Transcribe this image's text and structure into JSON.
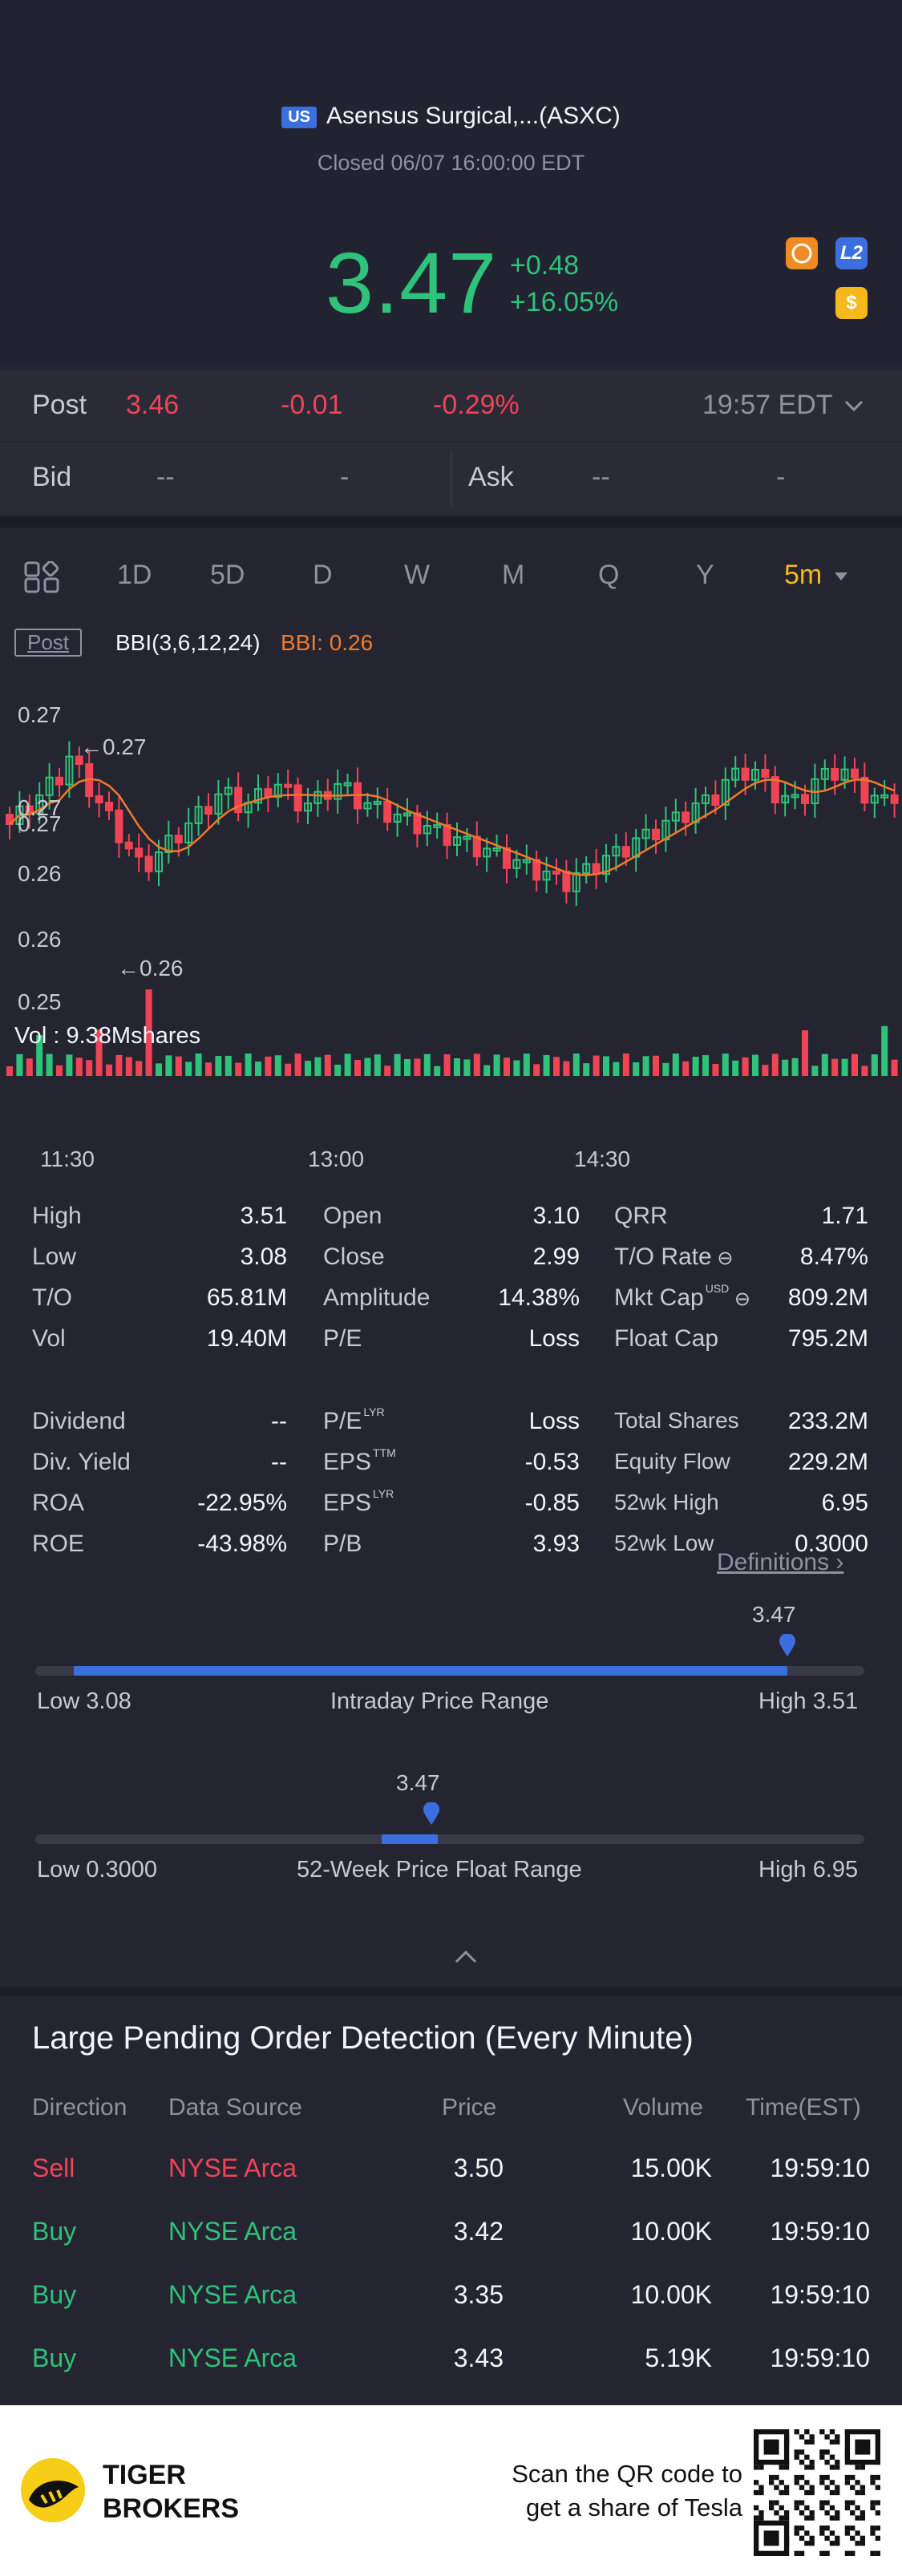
{
  "header": {
    "market_flag": "US",
    "title": "Asensus Surgical,...(ASXC)",
    "status": "Closed 06/07 16:00:00 EDT",
    "price": "3.47",
    "change": "+0.48",
    "change_pct": "+16.05%",
    "badges": {
      "l2": "L2",
      "dollar": "$"
    }
  },
  "post": {
    "label": "Post",
    "price": "3.46",
    "change": "-0.01",
    "change_pct": "-0.29%",
    "time": "19:57 EDT"
  },
  "bid_ask": {
    "bid_label": "Bid",
    "bid_price": "--",
    "bid_size": "-",
    "ask_label": "Ask",
    "ask_price": "--",
    "ask_size": "-"
  },
  "tabs": [
    "1D",
    "5D",
    "D",
    "W",
    "M",
    "Q",
    "Y",
    "5m"
  ],
  "active_tab": "5m",
  "indicator": {
    "post_tag": "Post",
    "name": "BBI(3,6,12,24)",
    "value": "BBI: 0.26"
  },
  "chart_data": {
    "type": "candlestick",
    "y_ticks": [
      "0.27",
      "0.27",
      "0.26",
      "0.26",
      "0.25"
    ],
    "x_ticks": [
      "11:30",
      "13:00",
      "14:30"
    ],
    "annotations": {
      "high": "0.27",
      "low": "0.26"
    },
    "volume_label": "Vol : 9.38Mshares"
  },
  "stats": {
    "col1": [
      {
        "label": "High",
        "value": "3.51"
      },
      {
        "label": "Low",
        "value": "3.08"
      },
      {
        "label": "T/O",
        "value": "65.81M"
      },
      {
        "label": "Vol",
        "value": "19.40M"
      }
    ],
    "col2": [
      {
        "label": "Open",
        "value": "3.10"
      },
      {
        "label": "Close",
        "value": "2.99"
      },
      {
        "label": "Amplitude",
        "value": "14.38%"
      },
      {
        "label": "P/E",
        "value": "Loss"
      }
    ],
    "col3": [
      {
        "label": "QRR",
        "value": "1.71"
      },
      {
        "label": "T/O Rate",
        "value": "8.47%"
      },
      {
        "label": "Mkt Cap",
        "value": "809.2M",
        "sup": "USD"
      },
      {
        "label": "Float Cap",
        "value": "795.2M"
      }
    ],
    "col1b": [
      {
        "label": "Dividend",
        "value": "--"
      },
      {
        "label": "Div. Yield",
        "value": "--"
      },
      {
        "label": "ROA",
        "value": "-22.95%"
      },
      {
        "label": "ROE",
        "value": "-43.98%"
      }
    ],
    "col2b": [
      {
        "label": "P/E",
        "sup": "LYR",
        "value": "Loss"
      },
      {
        "label": "EPS",
        "sup": "TTM",
        "value": "-0.53"
      },
      {
        "label": "EPS",
        "sup": "LYR",
        "value": "-0.85"
      },
      {
        "label": "P/B",
        "value": "3.93"
      }
    ],
    "col3b": [
      {
        "label": "Total Shares",
        "value": "233.2M"
      },
      {
        "label": "Equity Flow",
        "value": "229.2M"
      },
      {
        "label": "52wk High",
        "value": "6.95"
      },
      {
        "label": "52wk Low",
        "value": "0.3000"
      }
    ],
    "definitions": "Definitions"
  },
  "intraday_range": {
    "marker": "3.47",
    "low": "Low 3.08",
    "title": "Intraday Price Range",
    "high": "High 3.51",
    "position": 0.907
  },
  "week52_range": {
    "marker": "3.47",
    "low": "Low 0.3000",
    "title": "52-Week Price Float Range",
    "high": "High 6.95",
    "position": 0.477
  },
  "orders": {
    "title": "Large Pending Order Detection (Every Minute)",
    "headers": [
      "Direction",
      "Data Source",
      "Price",
      "Volume",
      "Time(EST)"
    ],
    "rows": [
      {
        "dir": "Sell",
        "src": "NYSE Arca",
        "price": "3.50",
        "vol": "15.00K",
        "time": "19:59:10"
      },
      {
        "dir": "Buy",
        "src": "NYSE Arca",
        "price": "3.42",
        "vol": "10.00K",
        "time": "19:59:10"
      },
      {
        "dir": "Buy",
        "src": "NYSE Arca",
        "price": "3.35",
        "vol": "10.00K",
        "time": "19:59:10"
      },
      {
        "dir": "Buy",
        "src": "NYSE Arca",
        "price": "3.43",
        "vol": "5.19K",
        "time": "19:59:10"
      }
    ]
  },
  "footer": {
    "brand_line1": "TIGER",
    "brand_line2": "BROKERS",
    "cta_line1": "Scan the QR code to",
    "cta_line2": "get a share of Tesla"
  },
  "colors": {
    "up": "#2fc27a",
    "down": "#f04455",
    "accent": "#f6b81b",
    "blue": "#3b6fe0",
    "bbi": "#f07a2a"
  }
}
